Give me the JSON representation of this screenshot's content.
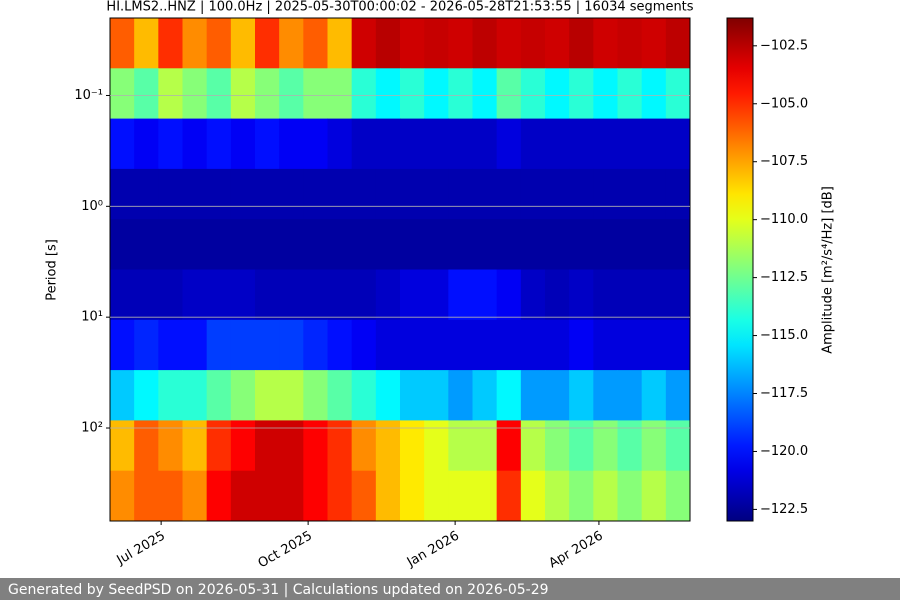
{
  "chart_data": {
    "type": "heatmap",
    "title": "HI.LMS2..HNZ | 100.0Hz | 2025-05-30T00:00:02 - 2026-05-28T21:53:55 | 16034 segments",
    "ylabel": "Period [s]",
    "colorbar_label": "Amplitude [m²/s⁴/Hz] [dB]",
    "xlim": [
      "2025-05-30",
      "2026-05-28"
    ],
    "xticks": [
      {
        "value": "2025-07",
        "label": "Jul 2025"
      },
      {
        "value": "2025-10",
        "label": "Oct 2025"
      },
      {
        "value": "2026-01",
        "label": "Jan 2026"
      },
      {
        "value": "2026-04",
        "label": "Apr 2026"
      }
    ],
    "ylim": [
      0.02,
      690
    ],
    "ylog": true,
    "yinvert": true,
    "yticks": [
      {
        "value": 0.1,
        "label": "10⁻¹"
      },
      {
        "value": 1,
        "label": "10⁰"
      },
      {
        "value": 10,
        "label": "10¹"
      },
      {
        "value": 100,
        "label": "10²"
      }
    ],
    "grid": true,
    "colormap": "jet",
    "clim": [
      -123.0,
      -101.3
    ],
    "cticks": [
      {
        "value": -102.5,
        "label": "−102.5"
      },
      {
        "value": -105.0,
        "label": "−105.0"
      },
      {
        "value": -107.5,
        "label": "−107.5"
      },
      {
        "value": -110.0,
        "label": "−110.0"
      },
      {
        "value": -112.5,
        "label": "−112.5"
      },
      {
        "value": -115.0,
        "label": "−115.0"
      },
      {
        "value": -117.5,
        "label": "−117.5"
      },
      {
        "value": -120.0,
        "label": "−120.0"
      },
      {
        "value": -122.5,
        "label": "−122.5"
      }
    ],
    "z": [
      [
        -106,
        -108,
        -105,
        -107,
        -106,
        -108,
        -105,
        -107,
        -106,
        -108,
        -103,
        -102.5,
        -103,
        -102.8,
        -103,
        -102.6,
        -103,
        -102.8,
        -103,
        -102.5,
        -103,
        -102.8,
        -103,
        -102.6
      ],
      [
        -112,
        -113,
        -111,
        -112,
        -113,
        -111,
        -112,
        -113,
        -112,
        -112,
        -114,
        -115,
        -114,
        -115,
        -114,
        -115,
        -113,
        -114,
        -115,
        -114,
        -115,
        -114,
        -115,
        -114
      ],
      [
        -120,
        -120.5,
        -120,
        -120.5,
        -120,
        -120.5,
        -120,
        -120.5,
        -120.5,
        -121,
        -121.5,
        -121.5,
        -121.5,
        -121.5,
        -121.5,
        -121.5,
        -121,
        -121.5,
        -121.5,
        -121.5,
        -121.5,
        -121.5,
        -121.5,
        -121.5
      ],
      [
        -122,
        -122,
        -122,
        -122,
        -122,
        -122,
        -122,
        -122,
        -122,
        -122,
        -122,
        -122,
        -122,
        -122,
        -122,
        -122,
        -122,
        -122,
        -122,
        -122,
        -122,
        -122,
        -122,
        -122
      ],
      [
        -122.3,
        -122.3,
        -122.3,
        -122.3,
        -122.3,
        -122.3,
        -122.3,
        -122.3,
        -122.3,
        -122.3,
        -122.3,
        -122.3,
        -122.3,
        -122.3,
        -122.3,
        -122.3,
        -122.3,
        -122.3,
        -122.3,
        -122.3,
        -122.3,
        -122.3,
        -122.3,
        -122.3
      ],
      [
        -121.8,
        -121.8,
        -121.8,
        -121.5,
        -121.5,
        -121.5,
        -121.8,
        -121.8,
        -121.8,
        -121.8,
        -121.8,
        -121.5,
        -121,
        -121,
        -120,
        -120,
        -120.5,
        -121.5,
        -121.8,
        -121.5,
        -121.8,
        -121.8,
        -121.8,
        -121.8
      ],
      [
        -120,
        -119.5,
        -120,
        -120,
        -119,
        -119,
        -119,
        -119,
        -119.5,
        -120,
        -120.5,
        -121,
        -121,
        -121,
        -121,
        -121,
        -121,
        -121,
        -121,
        -120.5,
        -121,
        -121,
        -121,
        -121
      ],
      [
        -116,
        -115,
        -114,
        -114,
        -113,
        -112,
        -111,
        -111,
        -112,
        -113,
        -114,
        -115,
        -116,
        -116,
        -117,
        -116,
        -115,
        -117,
        -117,
        -116,
        -117,
        -117,
        -116,
        -117
      ],
      [
        -108,
        -106,
        -107,
        -108,
        -105,
        -104,
        -103,
        -103,
        -104,
        -105,
        -107,
        -108,
        -109,
        -110,
        -111,
        -111,
        -104,
        -111,
        -112,
        -113,
        -112,
        -113,
        -112,
        -113
      ],
      [
        -107,
        -106,
        -106,
        -107,
        -104,
        -103,
        -103,
        -103,
        -104,
        -105,
        -106,
        -108,
        -109,
        -110,
        -110,
        -110,
        -105,
        -110,
        -111,
        -112,
        -111,
        -112,
        -111,
        -112
      ]
    ],
    "footer": "Generated by SeedPSD on 2026-05-31 | Calculations updated on 2026-05-29"
  }
}
